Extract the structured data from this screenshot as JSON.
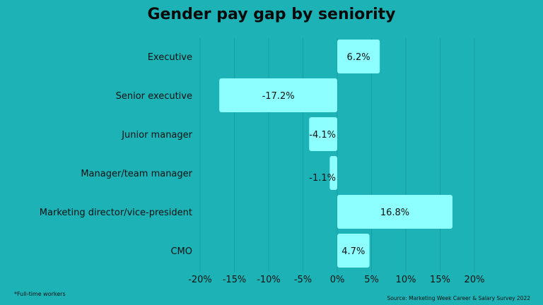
{
  "chart_data": {
    "type": "bar",
    "orientation": "horizontal",
    "title": "Gender pay gap by seniority",
    "categories": [
      "Executive",
      "Senior executive",
      "Junior manager",
      "Manager/team manager",
      "Marketing director/vice-president",
      "CMO"
    ],
    "values": [
      6.2,
      -17.2,
      -4.1,
      -1.1,
      16.8,
      4.7
    ],
    "value_labels": [
      "6.2%",
      "-17.2%",
      "-4.1%",
      "-1.1%",
      "16.8%",
      "4.7%"
    ],
    "xlim": [
      -20,
      20
    ],
    "x_ticks": [
      -20,
      -15,
      -10,
      -5,
      0,
      5,
      10,
      15,
      20
    ],
    "x_tick_labels": [
      "-20%",
      "-15%",
      "-10%",
      "-5%",
      "0%",
      "5%",
      "10%",
      "15%",
      "20%"
    ],
    "grid": true,
    "xlabel": "",
    "ylabel": "",
    "colors": {
      "background": "#1db2b6",
      "bar": "#8dffff",
      "grid": "#179ea2"
    }
  },
  "footnote": "*Full-time workers",
  "source": "Source: Marketing Week Career & Salary Survey 2022"
}
